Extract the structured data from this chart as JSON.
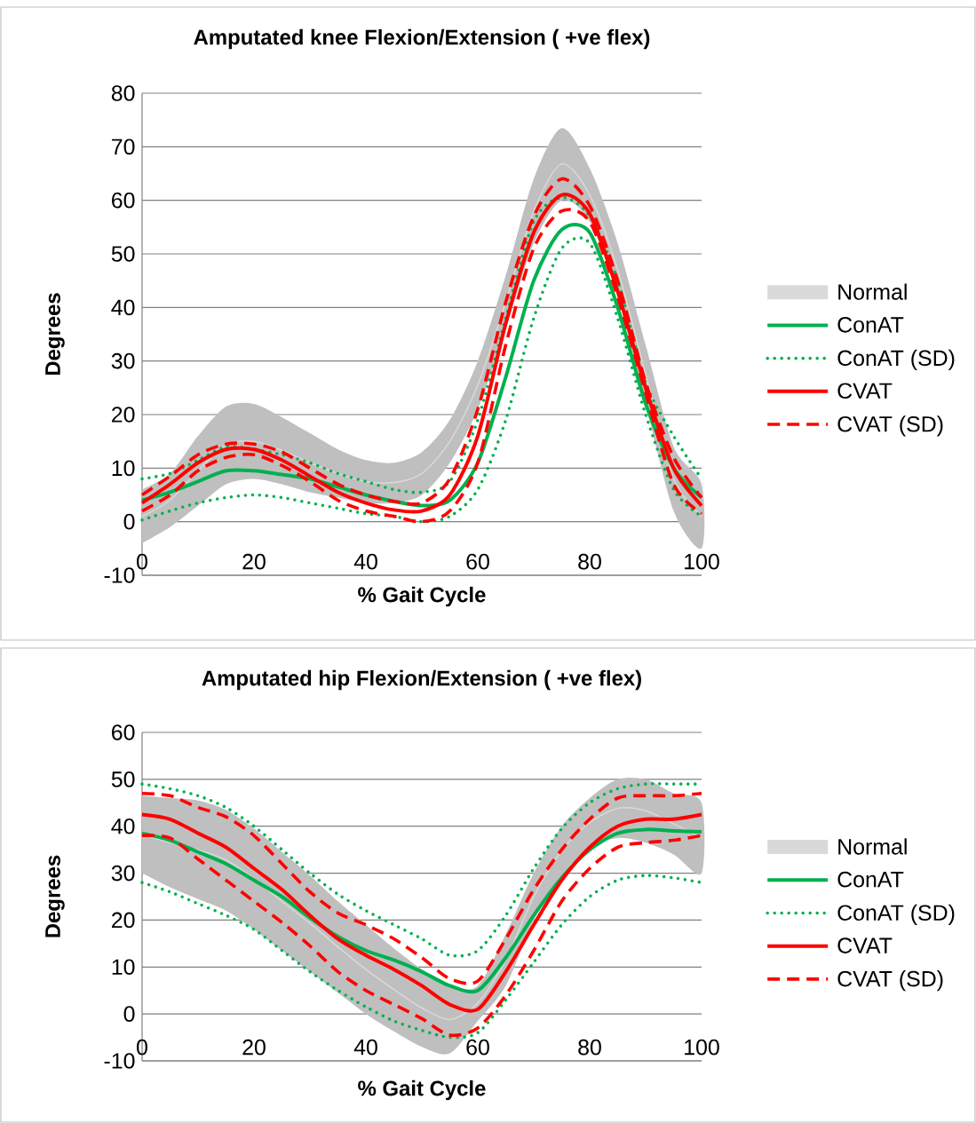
{
  "chart_data": [
    {
      "type": "line",
      "title": "Amputated knee Flexion/Extension ( +ve flex)",
      "xlabel": "% Gait Cycle",
      "ylabel": "Degrees",
      "xlim": [
        0,
        100
      ],
      "xticks": [
        0,
        20,
        40,
        60,
        80,
        100
      ],
      "ylim": [
        -10,
        80
      ],
      "yticks": [
        -10,
        0,
        10,
        20,
        30,
        40,
        50,
        60,
        70,
        80
      ],
      "grid": "y",
      "legend": "right",
      "x": [
        0,
        5,
        10,
        15,
        20,
        25,
        30,
        35,
        40,
        45,
        50,
        55,
        60,
        65,
        70,
        75,
        80,
        85,
        90,
        95,
        100
      ],
      "series": [
        {
          "name": "Normal",
          "color": "#d9d9d9",
          "values": [
            1,
            4,
            9.5,
            14.3,
            15,
            13.3,
            11,
            9,
            7.5,
            7.3,
            9,
            15,
            25.5,
            41,
            58,
            66.8,
            61,
            47,
            27.5,
            8,
            1
          ],
          "lower": [
            -4,
            -1,
            3,
            7,
            8,
            7,
            5.5,
            4.5,
            3.5,
            3.5,
            5,
            11,
            21,
            36,
            52,
            60,
            56,
            42,
            22,
            2,
            -5
          ],
          "upper": [
            6,
            9,
            16,
            21.5,
            22,
            19.5,
            16.5,
            13.5,
            11.5,
            11,
            13,
            19,
            30,
            46,
            64,
            73.5,
            66,
            52,
            33,
            14,
            7
          ]
        },
        {
          "name": "ConAT",
          "color": "#00b050",
          "line_style": "solid",
          "values": [
            4,
            5.5,
            7.5,
            9.5,
            9.5,
            8.8,
            8,
            6.5,
            5,
            3.8,
            3,
            4,
            11,
            27,
            45,
            54.5,
            54,
            40,
            22,
            10,
            4.5
          ]
        },
        {
          "name": "ConAT (SD)",
          "color": "#00b050",
          "line_style": "dotted",
          "values": [
            8,
            9,
            11.5,
            14,
            13.5,
            12.5,
            11,
            9,
            7.5,
            6,
            5.5,
            7.5,
            19,
            38,
            56,
            60.5,
            57,
            45,
            26,
            16,
            8
          ]
        },
        {
          "color": "#00b050",
          "line_style": "dotted",
          "values": [
            0.3,
            2,
            3.5,
            4.5,
            5,
            4.5,
            3.5,
            2.5,
            1.5,
            1,
            0,
            1,
            6,
            19,
            38,
            51,
            52,
            38,
            20,
            6,
            1
          ]
        },
        {
          "name": "CVAT",
          "color": "#ff0000",
          "line_style": "solid",
          "values": [
            3.5,
            7,
            11,
            13.5,
            13.5,
            11.5,
            8.5,
            5.5,
            3.5,
            2.2,
            2,
            5,
            16,
            37,
            54,
            61,
            57.5,
            43,
            25,
            10,
            3
          ]
        },
        {
          "name": "CVAT (SD)",
          "color": "#ff0000",
          "line_style": "dashed",
          "values": [
            5,
            8.5,
            12.5,
            14.5,
            14.5,
            13,
            10,
            7,
            5,
            3.8,
            3.5,
            8,
            21,
            41,
            57,
            64,
            59,
            45,
            26,
            12,
            4.5
          ]
        },
        {
          "color": "#ff0000",
          "line_style": "dashed",
          "values": [
            2,
            5,
            9.5,
            12,
            12.5,
            10.5,
            7.5,
            4,
            2,
            1,
            0,
            2,
            11,
            33,
            51,
            58,
            56,
            42,
            24,
            7,
            1.5
          ]
        }
      ]
    },
    {
      "type": "line",
      "title": "Amputated hip Flexion/Extension ( +ve flex)",
      "xlabel": "% Gait Cycle",
      "ylabel": "Degrees",
      "xlim": [
        0,
        100
      ],
      "xticks": [
        0,
        20,
        40,
        60,
        80,
        100
      ],
      "ylim": [
        -10,
        60
      ],
      "yticks": [
        -10,
        0,
        10,
        20,
        30,
        40,
        50,
        60
      ],
      "grid": "y",
      "legend": "right",
      "x": [
        0,
        5,
        10,
        15,
        20,
        25,
        30,
        35,
        40,
        45,
        50,
        55,
        60,
        65,
        70,
        75,
        80,
        85,
        90,
        95,
        100
      ],
      "series": [
        {
          "name": "Normal",
          "color": "#d9d9d9",
          "values": [
            38.3,
            36.5,
            35,
            32.8,
            28.8,
            24,
            19.3,
            14.3,
            9.5,
            5.2,
            1.3,
            -1.2,
            2.3,
            11.5,
            25,
            34.8,
            40.8,
            43.8,
            43.3,
            40.5,
            37.5
          ],
          "lower": [
            30,
            27,
            24.5,
            22,
            18,
            13.5,
            9,
            4.5,
            0,
            -3.7,
            -7,
            -8.4,
            -1.5,
            6,
            20,
            29.5,
            35.5,
            37.5,
            36.5,
            34,
            30
          ],
          "upper": [
            46.5,
            46,
            45.5,
            43.5,
            39.5,
            34.5,
            29.5,
            24,
            19,
            14,
            9.5,
            6,
            6,
            17,
            30,
            40,
            46,
            50,
            50,
            47,
            45
          ]
        },
        {
          "name": "ConAT",
          "color": "#00b050",
          "line_style": "solid",
          "values": [
            38.5,
            37,
            34.5,
            32,
            28.5,
            25,
            20.5,
            16.5,
            13.5,
            11.5,
            9,
            6,
            5,
            12,
            21,
            29,
            35,
            38.5,
            39.3,
            39,
            38.8
          ]
        },
        {
          "name": "ConAT (SD)",
          "color": "#00b050",
          "line_style": "dotted",
          "values": [
            49,
            48,
            46.5,
            44,
            40,
            35,
            30,
            25.5,
            22,
            19,
            16,
            12.5,
            13.5,
            21,
            31,
            39.5,
            45,
            48,
            49,
            49,
            49
          ]
        },
        {
          "color": "#00b050",
          "line_style": "dotted",
          "values": [
            28,
            26,
            23.5,
            21,
            18,
            13.5,
            9,
            5,
            1.5,
            -1.5,
            -3.5,
            -5,
            -4,
            3,
            11,
            19,
            25,
            28.5,
            29.5,
            29,
            28
          ]
        },
        {
          "name": "CVAT",
          "color": "#ff0000",
          "line_style": "solid",
          "values": [
            42.5,
            41.5,
            38.5,
            35.5,
            31,
            26.5,
            21,
            16,
            12.5,
            9.5,
            6,
            2,
            1,
            9,
            19,
            28.5,
            35.5,
            40,
            41.5,
            41.5,
            42.5
          ]
        },
        {
          "name": "CVAT (SD)",
          "color": "#ff0000",
          "line_style": "dashed",
          "values": [
            47,
            46.5,
            44,
            42,
            38,
            32,
            26,
            21.5,
            19,
            16,
            12,
            7.5,
            7,
            16,
            26.5,
            35,
            41.5,
            46,
            46.5,
            46.5,
            47
          ]
        },
        {
          "color": "#ff0000",
          "line_style": "dashed",
          "values": [
            38,
            37.5,
            33,
            28.5,
            24,
            19.5,
            14.5,
            9,
            5,
            2,
            -1,
            -4.5,
            -3,
            4,
            13.5,
            24,
            31,
            35.5,
            36.5,
            37,
            38
          ]
        }
      ]
    }
  ]
}
